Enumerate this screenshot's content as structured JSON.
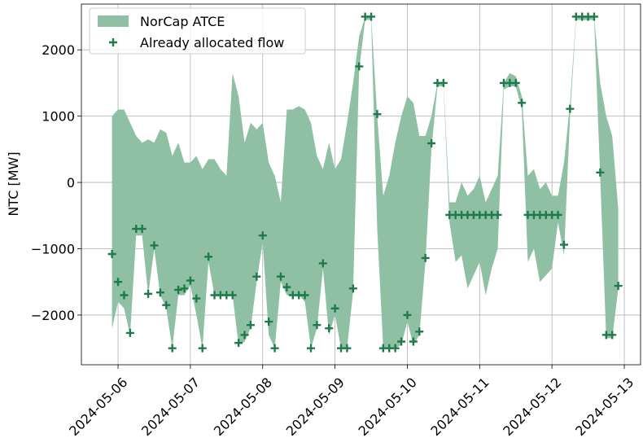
{
  "chart_data": {
    "type": "area",
    "ylabel": "NTC [MW]",
    "x": [
      "2024-05-05T22:00",
      "2024-05-06T00:00",
      "2024-05-06T02:00",
      "2024-05-06T04:00",
      "2024-05-06T06:00",
      "2024-05-06T08:00",
      "2024-05-06T10:00",
      "2024-05-06T12:00",
      "2024-05-06T14:00",
      "2024-05-06T16:00",
      "2024-05-06T18:00",
      "2024-05-06T20:00",
      "2024-05-06T22:00",
      "2024-05-07T00:00",
      "2024-05-07T02:00",
      "2024-05-07T04:00",
      "2024-05-07T06:00",
      "2024-05-07T08:00",
      "2024-05-07T10:00",
      "2024-05-07T12:00",
      "2024-05-07T14:00",
      "2024-05-07T16:00",
      "2024-05-07T18:00",
      "2024-05-07T20:00",
      "2024-05-07T22:00",
      "2024-05-08T00:00",
      "2024-05-08T02:00",
      "2024-05-08T04:00",
      "2024-05-08T06:00",
      "2024-05-08T08:00",
      "2024-05-08T10:00",
      "2024-05-08T12:00",
      "2024-05-08T14:00",
      "2024-05-08T16:00",
      "2024-05-08T18:00",
      "2024-05-08T20:00",
      "2024-05-08T22:00",
      "2024-05-09T00:00",
      "2024-05-09T02:00",
      "2024-05-09T04:00",
      "2024-05-09T06:00",
      "2024-05-09T08:00",
      "2024-05-09T10:00",
      "2024-05-09T12:00",
      "2024-05-09T14:00",
      "2024-05-09T16:00",
      "2024-05-09T18:00",
      "2024-05-09T20:00",
      "2024-05-09T22:00",
      "2024-05-10T00:00",
      "2024-05-10T02:00",
      "2024-05-10T04:00",
      "2024-05-10T06:00",
      "2024-05-10T08:00",
      "2024-05-10T10:00",
      "2024-05-10T12:00",
      "2024-05-10T14:00",
      "2024-05-10T16:00",
      "2024-05-10T18:00",
      "2024-05-10T20:00",
      "2024-05-10T22:00",
      "2024-05-11T00:00",
      "2024-05-11T02:00",
      "2024-05-11T04:00",
      "2024-05-11T06:00",
      "2024-05-11T08:00",
      "2024-05-11T10:00",
      "2024-05-11T12:00",
      "2024-05-11T14:00",
      "2024-05-11T16:00",
      "2024-05-11T18:00",
      "2024-05-11T20:00",
      "2024-05-11T22:00",
      "2024-05-12T00:00",
      "2024-05-12T02:00",
      "2024-05-12T04:00",
      "2024-05-12T06:00",
      "2024-05-12T08:00",
      "2024-05-12T10:00",
      "2024-05-12T12:00",
      "2024-05-12T14:00",
      "2024-05-12T16:00",
      "2024-05-12T18:00",
      "2024-05-12T20:00",
      "2024-05-12T22:00"
    ],
    "series": [
      {
        "name": "NorCap ATCE",
        "type": "area",
        "color": "#8fc0a4",
        "upper": [
          1000,
          1100,
          1100,
          900,
          700,
          600,
          650,
          600,
          800,
          750,
          400,
          600,
          300,
          300,
          400,
          200,
          350,
          350,
          200,
          100,
          1650,
          1300,
          600,
          900,
          800,
          900,
          300,
          100,
          -300,
          1100,
          1100,
          1150,
          1100,
          900,
          400,
          200,
          600,
          200,
          350,
          900,
          1500,
          2200,
          2500,
          2500,
          1000,
          -200,
          100,
          600,
          1000,
          1300,
          1200,
          700,
          700,
          1000,
          1500,
          1500,
          -300,
          -300,
          0,
          -200,
          -100,
          100,
          -300,
          -100,
          100,
          1500,
          1650,
          1600,
          1300,
          100,
          200,
          -100,
          0,
          -200,
          -200,
          300,
          1200,
          2500,
          2500,
          2500,
          2500,
          1500,
          1000,
          700,
          -400
        ],
        "lower": [
          -2200,
          -1800,
          -1900,
          -2300,
          -800,
          -800,
          -1700,
          -1000,
          -1700,
          -1900,
          -2500,
          -1700,
          -1700,
          -1550,
          -2000,
          -2500,
          -1200,
          -1700,
          -1700,
          -1700,
          -1700,
          -2450,
          -2400,
          -2200,
          -1500,
          -900,
          -2300,
          -2500,
          -1500,
          -1700,
          -1700,
          -1700,
          -1800,
          -2500,
          -2200,
          -1300,
          -2300,
          -2000,
          -2500,
          -2500,
          -1650,
          1700,
          2450,
          2450,
          -700,
          -2500,
          -2500,
          -2500,
          -2450,
          -2100,
          -2450,
          -2300,
          -1200,
          500,
          1450,
          1450,
          -600,
          -1200,
          -1100,
          -1600,
          -1400,
          -1200,
          -1700,
          -1300,
          -1000,
          1400,
          1450,
          1450,
          1100,
          -1200,
          -1000,
          -1500,
          -1400,
          -1300,
          -600,
          -1100,
          1000,
          2450,
          2450,
          2450,
          2450,
          100,
          -2350,
          -2350,
          -1600
        ]
      },
      {
        "name": "Already allocated flow",
        "type": "scatter",
        "color": "#1e7a4a",
        "values": [
          -1080,
          -1500,
          -1700,
          -2270,
          -700,
          -700,
          -1680,
          -950,
          -1660,
          -1850,
          -2500,
          -1620,
          -1600,
          -1480,
          -1750,
          -2500,
          -1120,
          -1700,
          -1700,
          -1700,
          -1700,
          -2420,
          -2300,
          -2150,
          -1420,
          -800,
          -2100,
          -2500,
          -1420,
          -1580,
          -1700,
          -1700,
          -1700,
          -2500,
          -2150,
          -1220,
          -2200,
          -1900,
          -2500,
          -2500,
          -1600,
          1750,
          2500,
          2500,
          1030,
          -2500,
          -2500,
          -2500,
          -2400,
          -2000,
          -2400,
          -2250,
          -1140,
          590,
          1500,
          1500,
          -490,
          -490,
          -490,
          -490,
          -490,
          -490,
          -490,
          -490,
          -490,
          1500,
          1500,
          1500,
          1200,
          -490,
          -490,
          -490,
          -490,
          -490,
          -490,
          -940,
          1110,
          2500,
          2500,
          2500,
          2500,
          150,
          -2300,
          -2300,
          -1560
        ]
      }
    ],
    "xlim": [
      "2024-05-05T11:50",
      "2024-05-13T05:24"
    ],
    "xticks": [
      "2024-05-06",
      "2024-05-07",
      "2024-05-08",
      "2024-05-09",
      "2024-05-10",
      "2024-05-11",
      "2024-05-12",
      "2024-05-13"
    ],
    "ylim": [
      -2750,
      2690
    ],
    "yticks": [
      {
        "value": -2000,
        "label": "−2000"
      },
      {
        "value": -1000,
        "label": "−1000"
      },
      0,
      1000,
      2000
    ],
    "grid": true,
    "legend": "upper left"
  }
}
